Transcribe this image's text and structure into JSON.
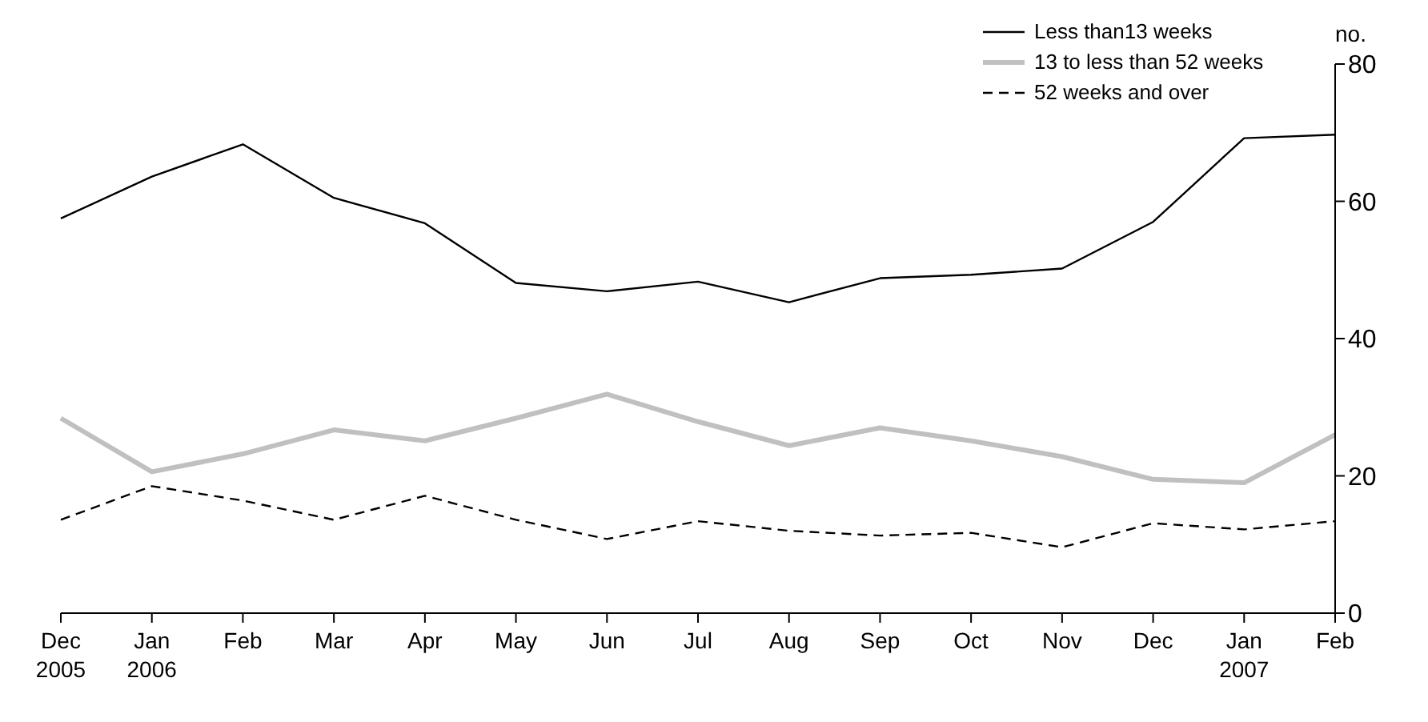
{
  "chart_data": {
    "type": "line",
    "ylabel": "no.",
    "categories": [
      "Dec\n2005",
      "Jan\n2006",
      "Feb",
      "Mar",
      "Apr",
      "May",
      "Jun",
      "Jul",
      "Aug",
      "Sep",
      "Oct",
      "Nov",
      "Dec",
      "Jan\n2007",
      "Feb"
    ],
    "series": [
      {
        "name": "Less than13 weeks",
        "color": "#000000",
        "line_style": "solid",
        "values": [
          57.5,
          63.6,
          68.3,
          60.5,
          56.8,
          48.1,
          46.9,
          48.3,
          45.3,
          48.8,
          49.3,
          50.2,
          57,
          69.2,
          69.7
        ]
      },
      {
        "name": "13 to less than 52 weeks",
        "color": "#c0c0c0",
        "line_style": "solid",
        "values": [
          28.4,
          20.6,
          23.2,
          26.7,
          25.1,
          28.4,
          31.9,
          27.9,
          24.4,
          27,
          25.1,
          22.8,
          19.5,
          19,
          26
        ]
      },
      {
        "name": "52 weeks and over",
        "color": "#000000",
        "line_style": "dashed",
        "values": [
          13.6,
          18.5,
          16.4,
          13.6,
          17.1,
          13.6,
          10.8,
          13.4,
          12,
          11.3,
          11.7,
          9.6,
          13.1,
          12.2,
          13.4
        ]
      }
    ],
    "ylim": [
      0,
      80
    ],
    "yticks": [
      0,
      20,
      40,
      60,
      80
    ],
    "grid": false,
    "legend": "top right",
    "marker": "none"
  }
}
